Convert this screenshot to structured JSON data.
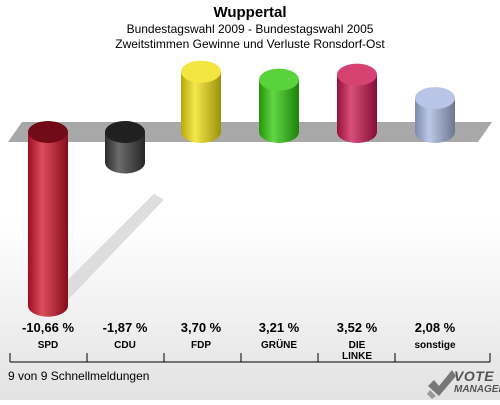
{
  "header": {
    "title": "Wuppertal",
    "subtitle1": "Bundestagswahl 2009 - Bundestagswahl 2005",
    "subtitle2": "Zweitstimmen Gewinne und Verluste Ronsdorf-Ost"
  },
  "footer": {
    "note": "9 von 9 Schnellmeldungen",
    "logo_line1": "VOTE",
    "logo_line2": "MANAGER"
  },
  "chart_data": {
    "type": "bar",
    "categories": [
      "SPD",
      "CDU",
      "FDP",
      "GRÜNE",
      "DIE LINKE",
      "sonstige"
    ],
    "category_lines": [
      [
        "SPD"
      ],
      [
        "CDU"
      ],
      [
        "FDP"
      ],
      [
        "GRÜNE"
      ],
      [
        "DIE",
        "LINKE"
      ],
      [
        "sonstige"
      ]
    ],
    "values": [
      -10.66,
      -1.87,
      3.7,
      3.21,
      3.52,
      2.08
    ],
    "value_labels": [
      "-10,66 %",
      "-1,87 %",
      "3,70 %",
      "3,21 %",
      "3,52 %",
      "2,08 %"
    ],
    "colors": [
      "#d0122a",
      "#3a3a3a",
      "#f0e010",
      "#2ec80a",
      "#cc1450",
      "#a6b6e0"
    ]
  }
}
